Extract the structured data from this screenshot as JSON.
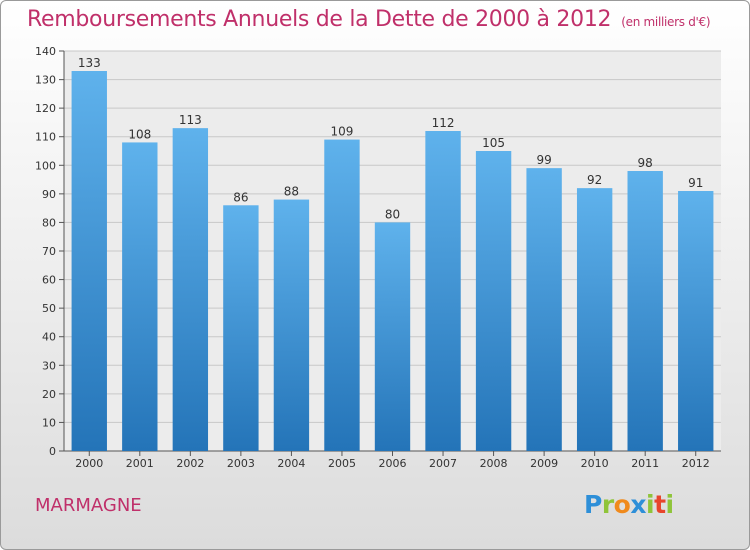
{
  "chart_data": {
    "type": "bar",
    "title": "Remboursements Annuels de la Dette de 2000 à 2012",
    "subtitle": "(en milliers d'€)",
    "categories": [
      "2000",
      "2001",
      "2002",
      "2003",
      "2004",
      "2005",
      "2006",
      "2007",
      "2008",
      "2009",
      "2010",
      "2011",
      "2012"
    ],
    "values": [
      133,
      108,
      113,
      86,
      88,
      109,
      80,
      112,
      105,
      99,
      92,
      98,
      91
    ],
    "ylim": [
      0,
      140
    ],
    "yticks": [
      0,
      10,
      20,
      30,
      40,
      50,
      60,
      70,
      80,
      90,
      100,
      110,
      120,
      130,
      140
    ],
    "xlabel": "",
    "ylabel": "",
    "grid": true,
    "bar_color": "#3f9ce0"
  },
  "footer": {
    "city": "MARMAGNE",
    "logo_letters": [
      "P",
      "r",
      "o",
      "x",
      "i",
      "t",
      "i"
    ],
    "logo_colors": [
      "#2e8fd8",
      "#8fc43a",
      "#f08a1c",
      "#2e8fd8",
      "#8fc43a",
      "#e8452c",
      "#8fc43a"
    ]
  }
}
